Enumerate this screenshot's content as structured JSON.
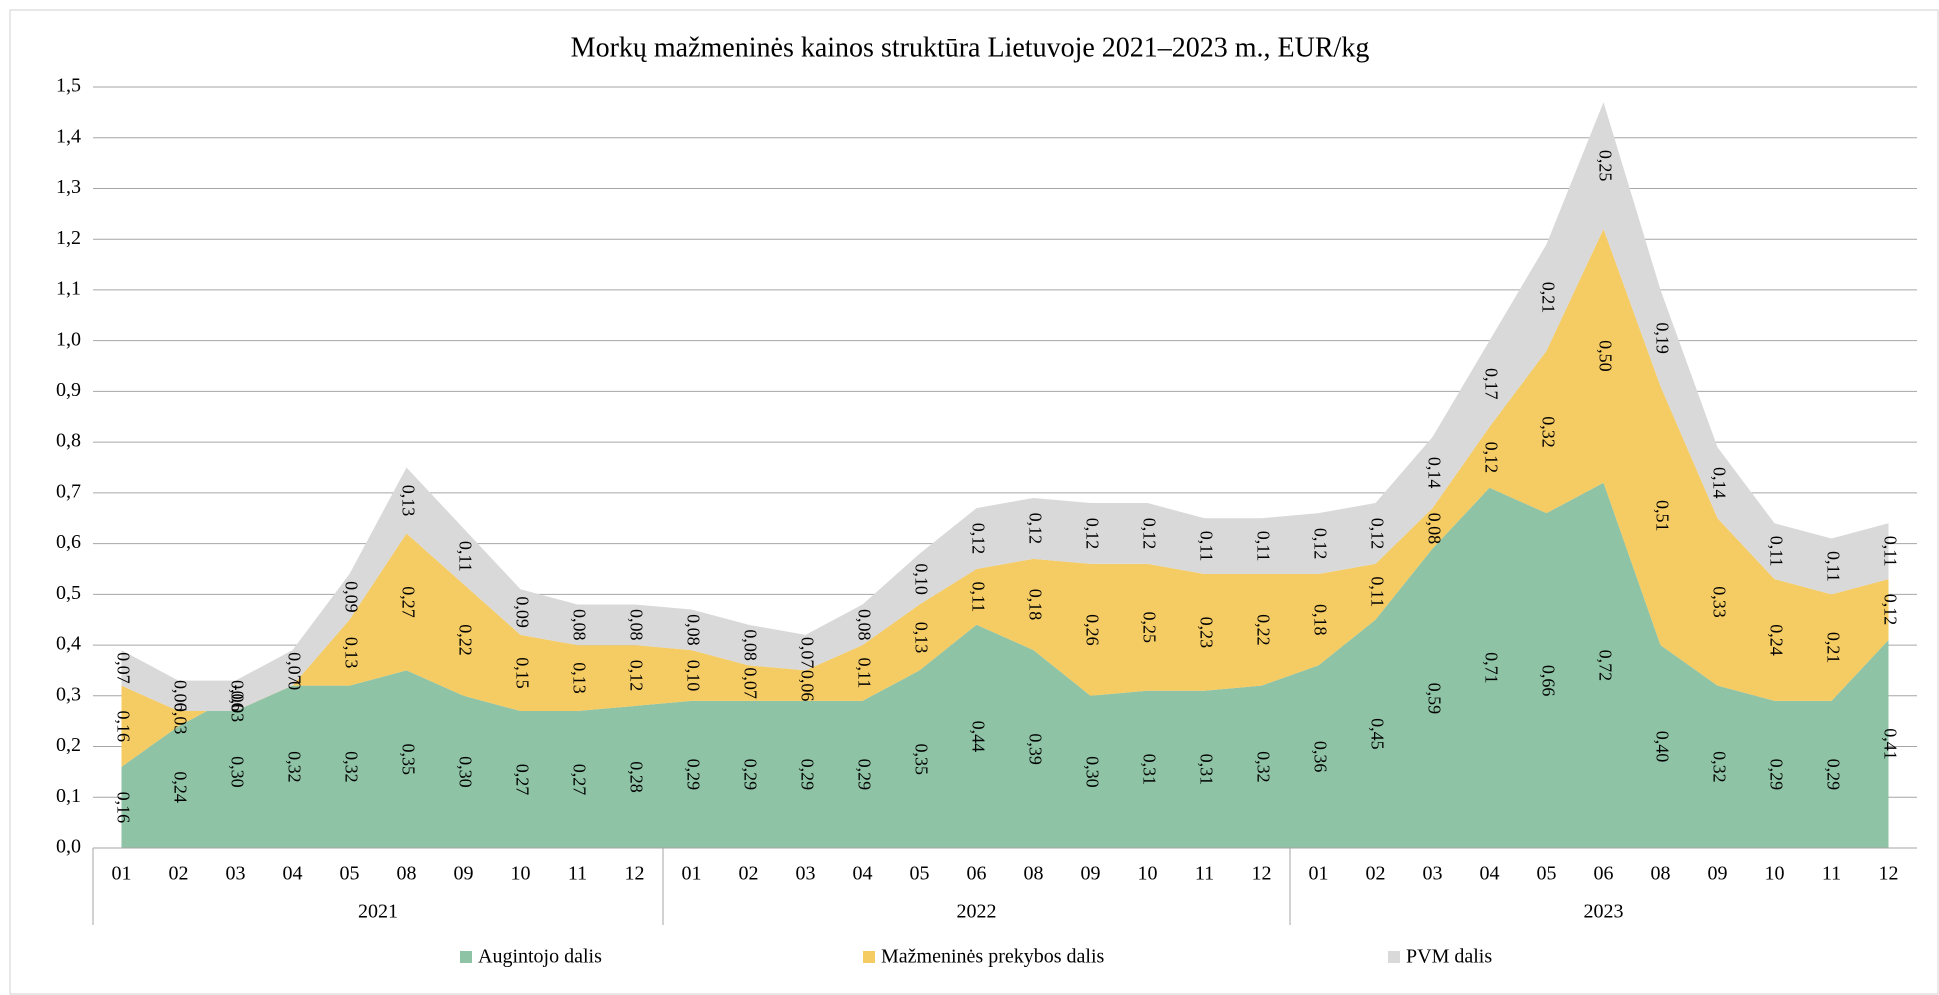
{
  "chart_data": {
    "type": "stacked_area",
    "title": "Morkų mažmeninės kainos struktūra Lietuvoje 2021–2023 m., EUR/kg",
    "category_groups": [
      {
        "label": "2021",
        "categories": [
          "01",
          "02",
          "03",
          "04",
          "05",
          "08",
          "09",
          "10",
          "11",
          "12"
        ]
      },
      {
        "label": "2022",
        "categories": [
          "01",
          "02",
          "03",
          "04",
          "05",
          "06",
          "08",
          "09",
          "10",
          "11",
          "12"
        ]
      },
      {
        "label": "2023",
        "categories": [
          "01",
          "02",
          "03",
          "04",
          "05",
          "06",
          "08",
          "09",
          "10",
          "11",
          "12"
        ]
      }
    ],
    "series": [
      {
        "name": "Augintojo dalis",
        "color": "#8ec3a6",
        "values": [
          0.16,
          0.24,
          0.3,
          0.32,
          0.32,
          0.35,
          0.3,
          0.27,
          0.27,
          0.28,
          0.29,
          0.29,
          0.29,
          0.29,
          0.35,
          0.44,
          0.39,
          0.3,
          0.31,
          0.31,
          0.32,
          0.36,
          0.45,
          0.59,
          0.71,
          0.66,
          0.72,
          0.4,
          0.32,
          0.29,
          0.29,
          0.41
        ],
        "value_labels": [
          "0,16",
          "0,24",
          "0,30",
          "0,32",
          "0,32",
          "0,35",
          "0,30",
          "0,27",
          "0,27",
          "0,28",
          "0,29",
          "0,29",
          "0,29",
          "0,29",
          "0,35",
          "0,44",
          "0,39",
          "0,30",
          "0,31",
          "0,31",
          "0,32",
          "0,36",
          "0,45",
          "0,59",
          "0,71",
          "0,66",
          "0,72",
          "0,40",
          "0,32",
          "0,29",
          "0,29",
          "0,41"
        ]
      },
      {
        "name": "Mažmeninės prekybos dalis",
        "color": "#f5cb63",
        "values": [
          0.16,
          0.03,
          -0.03,
          0,
          0.13,
          0.27,
          0.22,
          0.15,
          0.13,
          0.12,
          0.1,
          0.07,
          0.06,
          0.11,
          0.13,
          0.11,
          0.18,
          0.26,
          0.25,
          0.23,
          0.22,
          0.18,
          0.11,
          0.08,
          0.12,
          0.32,
          0.5,
          0.51,
          0.33,
          0.24,
          0.21,
          0.12
        ],
        "value_labels": [
          "0,16",
          "0,03",
          "-0,03",
          "0",
          "0,13",
          "0,27",
          "0,22",
          "0,15",
          "0,13",
          "0,12",
          "0,10",
          "0,07",
          "0,06",
          "0,11",
          "0,13",
          "0,11",
          "0,18",
          "0,26",
          "0,25",
          "0,23",
          "0,22",
          "0,18",
          "0,11",
          "0,08",
          "0,12",
          "0,32",
          "0,50",
          "0,51",
          "0,33",
          "0,24",
          "0,21",
          "0,12"
        ]
      },
      {
        "name": "PVM dalis",
        "color": "#d9d9d9",
        "values": [
          0.07,
          0.06,
          0.06,
          0.07,
          0.09,
          0.13,
          0.11,
          0.09,
          0.08,
          0.08,
          0.08,
          0.08,
          0.07,
          0.08,
          0.1,
          0.12,
          0.12,
          0.12,
          0.12,
          0.11,
          0.11,
          0.12,
          0.12,
          0.14,
          0.17,
          0.21,
          0.25,
          0.19,
          0.14,
          0.11,
          0.11,
          0.11
        ],
        "value_labels": [
          "0,07",
          "0,06",
          "0,06",
          "0,07",
          "0,09",
          "0,13",
          "0,11",
          "0,09",
          "0,08",
          "0,08",
          "0,08",
          "0,08",
          "0,07",
          "0,08",
          "0,10",
          "0,12",
          "0,12",
          "0,12",
          "0,12",
          "0,11",
          "0,11",
          "0,12",
          "0,12",
          "0,14",
          "0,17",
          "0,21",
          "0,25",
          "0,19",
          "0,14",
          "0,11",
          "0,11",
          "0,11"
        ]
      }
    ],
    "ylim": [
      0,
      1.5
    ],
    "yticks": [
      {
        "value": 0,
        "label": "0,0"
      },
      {
        "value": 0.1,
        "label": "0,1"
      },
      {
        "value": 0.2,
        "label": "0,2"
      },
      {
        "value": 0.3,
        "label": "0,3"
      },
      {
        "value": 0.4,
        "label": "0,4"
      },
      {
        "value": 0.5,
        "label": "0,5"
      },
      {
        "value": 0.6,
        "label": "0,6"
      },
      {
        "value": 0.7,
        "label": "0,7"
      },
      {
        "value": 0.8,
        "label": "0,8"
      },
      {
        "value": 0.9,
        "label": "0,9"
      },
      {
        "value": 1,
        "label": "1,0"
      },
      {
        "value": 1.1,
        "label": "1,1"
      },
      {
        "value": 1.2,
        "label": "1,2"
      },
      {
        "value": 1.3,
        "label": "1,3"
      },
      {
        "value": 1.4,
        "label": "1,4"
      },
      {
        "value": 1.5,
        "label": "1,5"
      }
    ],
    "grid": true,
    "legend": "bottom"
  }
}
